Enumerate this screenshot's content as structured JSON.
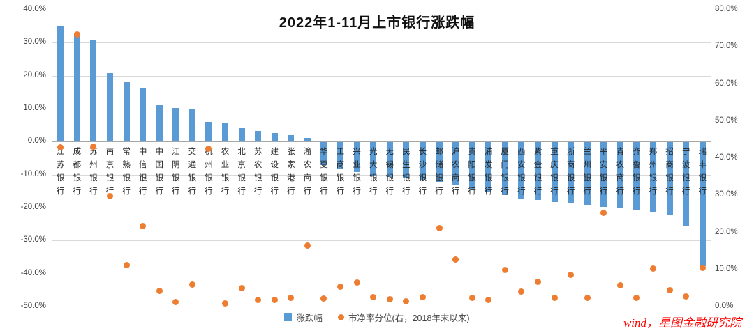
{
  "title": "2022年1-11月上市银行涨跌幅",
  "watermark": "wind，星图金融研究院",
  "colors": {
    "bar": "#5b9bd5",
    "dot": "#ed7d31",
    "gridline": "#d9d9d9",
    "watermark_red": "#ff0000"
  },
  "chart_data": {
    "type": "bar",
    "subtype": "bar-with-scatter-combo-dual-axis",
    "title": "2022年1-11月上市银行涨跌幅",
    "categories": [
      "江苏银行",
      "成都银行",
      "苏州银行",
      "南京银行",
      "常熟银行",
      "中信银行",
      "中国银行",
      "江阴银行",
      "交通银行",
      "杭州银行",
      "农业银行",
      "北京银行",
      "苏农银行",
      "建设银行",
      "张家港行",
      "渝农商行",
      "华夏银行",
      "工商银行",
      "兴业银行",
      "光大银行",
      "无锡银行",
      "民生银行",
      "长沙银行",
      "邮储银行",
      "沪农商行",
      "贵阳银行",
      "浦发银行",
      "厦门银行",
      "西安银行",
      "紫金银行",
      "重庆银行",
      "浙商银行",
      "兰州银行",
      "平安银行",
      "青农商行",
      "齐鲁银行",
      "郑州银行",
      "招商银行",
      "宁波银行",
      "瑞丰银行"
    ],
    "series": [
      {
        "name": "涨跌幅",
        "type": "bar",
        "axis": "left",
        "unit": "%",
        "values": [
          35.2,
          33.0,
          30.6,
          20.8,
          18.1,
          16.4,
          11.1,
          10.3,
          10.1,
          5.9,
          5.5,
          4.1,
          3.2,
          2.6,
          1.9,
          1.2,
          -7.0,
          -8.0,
          -9.0,
          -10.0,
          -10.5,
          -11.0,
          -11.5,
          -12.0,
          -13.0,
          -14.0,
          -15.0,
          -16.0,
          -17.0,
          -17.5,
          -18.0,
          -18.5,
          -19.0,
          -19.5,
          -20.0,
          -20.5,
          -21.0,
          -22.0,
          -25.5,
          -37.5
        ]
      },
      {
        "name": "市净率分位(右，2018年末以来)",
        "type": "scatter",
        "axis": "right",
        "unit": "%",
        "values": [
          43.0,
          73.4,
          43.1,
          29.7,
          11.1,
          21.6,
          4.3,
          1.3,
          6.0,
          42.5,
          0.9,
          4.9,
          1.7,
          1.7,
          2.4,
          16.4,
          2.1,
          5.3,
          6.4,
          2.5,
          1.9,
          1.5,
          2.6,
          21.1,
          12.6,
          2.3,
          1.7,
          9.8,
          4.1,
          6.6,
          2.3,
          8.5,
          2.3,
          25.2,
          5.8,
          2.3,
          10.2,
          4.5,
          2.8,
          10.5
        ]
      }
    ],
    "left_axis": {
      "min": -50,
      "max": 40,
      "ticks": [
        {
          "value": 40,
          "label": "40.0%"
        },
        {
          "value": 30,
          "label": "30.0%"
        },
        {
          "value": 20,
          "label": "20.0%"
        },
        {
          "value": 10,
          "label": "10.0%"
        },
        {
          "value": 0,
          "label": "0.0%"
        },
        {
          "value": -10,
          "label": "-10.0%"
        },
        {
          "value": -20,
          "label": "-20.0%"
        },
        {
          "value": -30,
          "label": "-30.0%"
        },
        {
          "value": -40,
          "label": "-40.0%"
        },
        {
          "value": -50,
          "label": "-50.0%"
        }
      ]
    },
    "right_axis": {
      "min": 0,
      "max": 80,
      "ticks": [
        {
          "value": 80,
          "label": "80.0%"
        },
        {
          "value": 70,
          "label": "70.0%"
        },
        {
          "value": 60,
          "label": "60.0%"
        },
        {
          "value": 50,
          "label": "50.0%"
        },
        {
          "value": 40,
          "label": "40.0%"
        },
        {
          "value": 30,
          "label": "30.0%"
        },
        {
          "value": 20,
          "label": "20.0%"
        },
        {
          "value": 10,
          "label": "10.0%"
        },
        {
          "value": 0,
          "label": "0.0%"
        }
      ]
    },
    "grid": true,
    "legend_position": "bottom-center"
  }
}
